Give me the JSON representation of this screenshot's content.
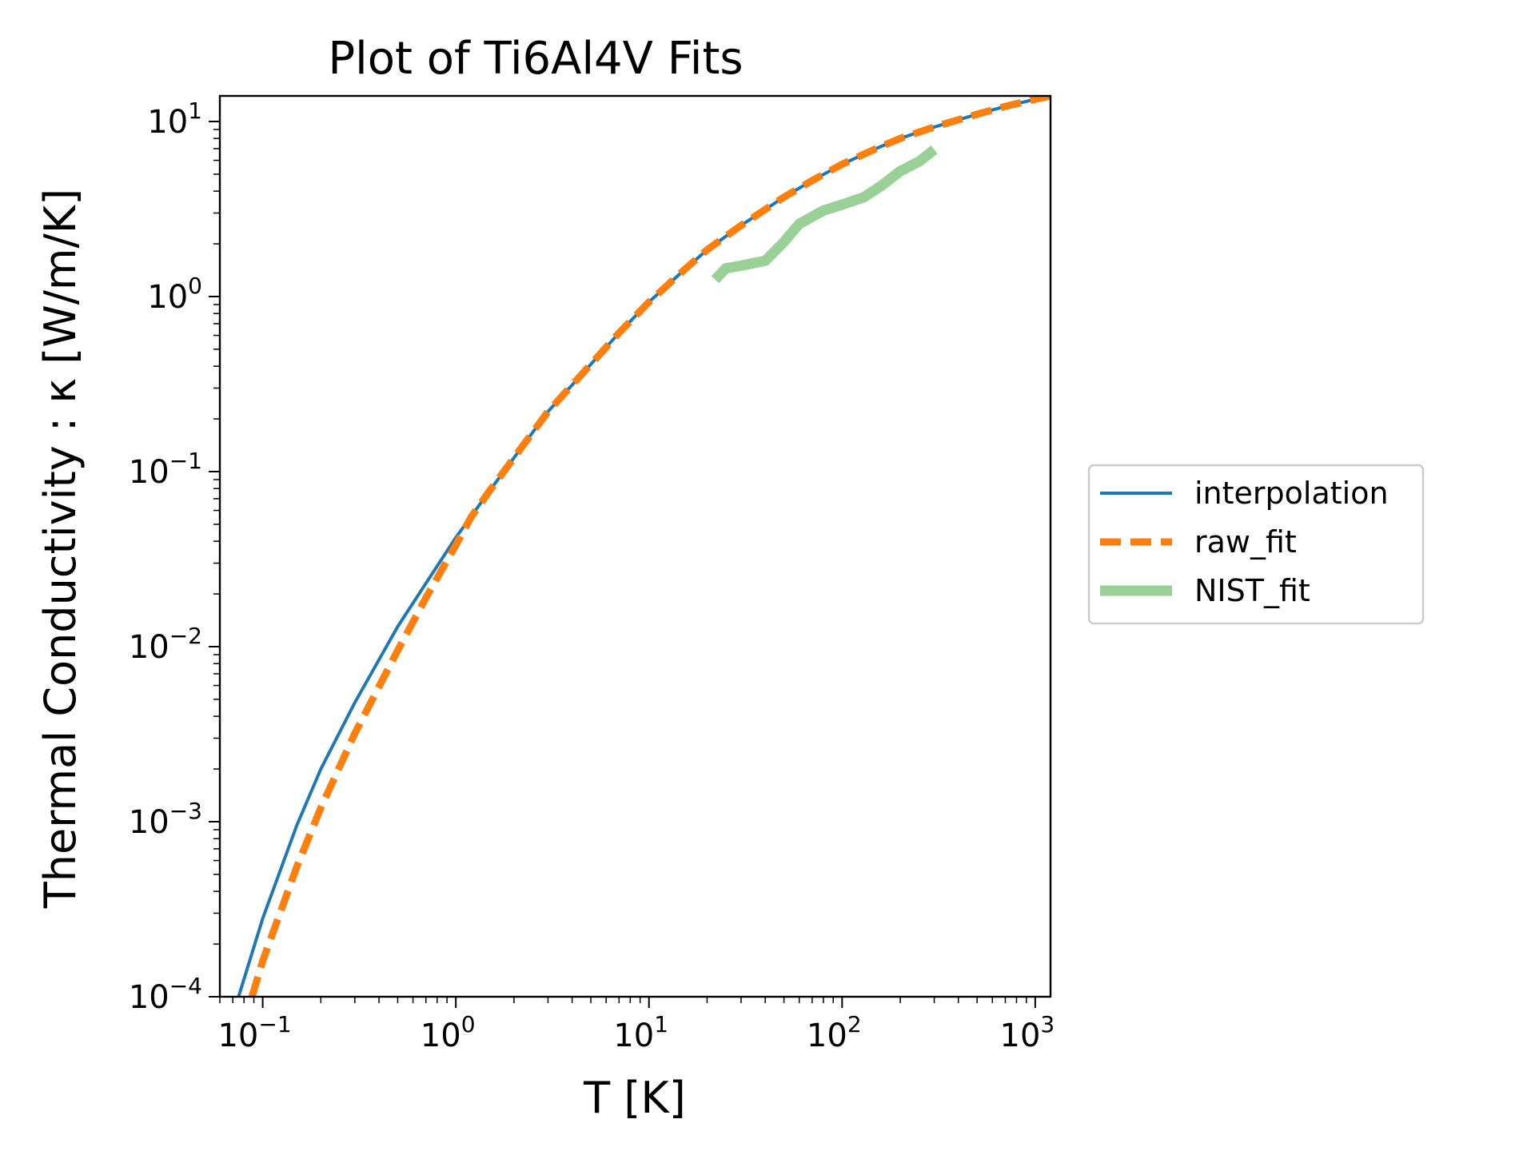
{
  "chart_data": {
    "type": "line",
    "title": "Plot of Ti6Al4V Fits",
    "xlabel": "T [K]",
    "ylabel": "Thermal Conductivity : κ [W/m/K]",
    "xscale": "log",
    "yscale": "log",
    "xlim": [
      0.06,
      1200
    ],
    "ylim": [
      0.0001,
      14
    ],
    "grid": false,
    "legend_position": "outside-right",
    "x_ticks": [
      {
        "base": "10",
        "exp": "−1",
        "value": 0.1
      },
      {
        "base": "10",
        "exp": "0",
        "value": 1
      },
      {
        "base": "10",
        "exp": "1",
        "value": 10
      },
      {
        "base": "10",
        "exp": "2",
        "value": 100
      },
      {
        "base": "10",
        "exp": "3",
        "value": 1000
      }
    ],
    "y_ticks": [
      {
        "base": "10",
        "exp": "−4",
        "value": 0.0001
      },
      {
        "base": "10",
        "exp": "−3",
        "value": 0.001
      },
      {
        "base": "10",
        "exp": "−2",
        "value": 0.01
      },
      {
        "base": "10",
        "exp": "−1",
        "value": 0.1
      },
      {
        "base": "10",
        "exp": "0",
        "value": 1
      },
      {
        "base": "10",
        "exp": "1",
        "value": 10
      }
    ],
    "series": [
      {
        "name": "interpolation",
        "color": "#1f77b4",
        "style": "solid",
        "x": [
          0.075,
          0.1,
          0.15,
          0.2,
          0.3,
          0.5,
          0.7,
          1.0,
          1.5,
          2,
          3,
          5,
          7,
          10,
          15,
          20,
          30,
          50,
          70,
          100,
          150,
          200,
          300,
          500,
          700,
          1000,
          1200
        ],
        "y": [
          0.0001,
          0.00028,
          0.00095,
          0.002,
          0.0048,
          0.013,
          0.023,
          0.042,
          0.078,
          0.12,
          0.22,
          0.41,
          0.62,
          0.93,
          1.4,
          1.85,
          2.55,
          3.7,
          4.6,
          5.7,
          7.0,
          8.0,
          9.3,
          11.0,
          12.2,
          13.4,
          14.0
        ]
      },
      {
        "name": "raw_fit",
        "color": "#ff7f0e",
        "style": "dashed",
        "x": [
          0.088,
          0.1,
          0.15,
          0.2,
          0.3,
          0.5,
          0.7,
          1.0,
          1.2,
          1.5,
          2,
          3,
          5,
          7,
          10,
          15,
          20,
          30,
          50,
          70,
          100,
          150,
          200,
          300,
          500,
          700,
          1000,
          1200
        ],
        "y": [
          0.0001,
          0.00016,
          0.00055,
          0.0012,
          0.0032,
          0.0095,
          0.019,
          0.038,
          0.055,
          0.078,
          0.12,
          0.22,
          0.41,
          0.62,
          0.93,
          1.4,
          1.85,
          2.55,
          3.7,
          4.6,
          5.7,
          7.0,
          8.0,
          9.3,
          11.0,
          12.2,
          13.4,
          14.0
        ]
      },
      {
        "name": "NIST_fit",
        "color": "#98d095",
        "style": "solid-thick",
        "x": [
          22,
          25,
          30,
          40,
          50,
          60,
          80,
          100,
          130,
          160,
          200,
          250,
          300
        ],
        "y": [
          1.25,
          1.45,
          1.5,
          1.6,
          2.05,
          2.6,
          3.1,
          3.35,
          3.7,
          4.3,
          5.2,
          5.9,
          6.9
        ]
      }
    ]
  }
}
